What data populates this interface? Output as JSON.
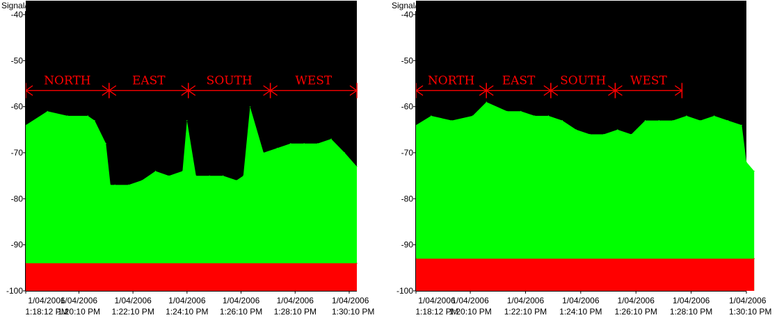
{
  "chart_data": [
    {
      "type": "area",
      "ylabel": "Signal/Noise, dBm",
      "ylim": [
        -100,
        -40
      ],
      "yticks": [
        -40,
        -50,
        -60,
        -70,
        -80,
        -90,
        -100
      ],
      "grid": false,
      "xticks": [
        {
          "date": "1/04/2006",
          "time": "1:18:12 PM"
        },
        {
          "date": "1/04/2006",
          "time": "1:20:10 PM"
        },
        {
          "date": "1/04/2006",
          "time": "1:22:10 PM"
        },
        {
          "date": "1/04/2006",
          "time": "1:24:10 PM"
        },
        {
          "date": "1/04/2006",
          "time": "1:26:10 PM"
        },
        {
          "date": "1/04/2006",
          "time": "1:28:10 PM"
        },
        {
          "date": "1/04/2006",
          "time": "1:30:10 PM"
        }
      ],
      "regions": [
        {
          "label": "NORTH",
          "start": "1:18:12 PM",
          "end": "1:21:17 PM"
        },
        {
          "label": "EAST",
          "start": "1:21:17 PM",
          "end": "1:24:13 PM"
        },
        {
          "label": "SOUTH",
          "start": "1:24:13 PM",
          "end": "1:27:15 PM"
        },
        {
          "label": "WEST",
          "start": "1:27:15 PM",
          "end": "1:30:27 PM"
        }
      ],
      "series": [
        {
          "name": "",
          "color": "#00ff00",
          "x": [
            "1:18:12 PM",
            "1:19:00 PM",
            "1:19:45 PM",
            "1:20:30 PM",
            "1:20:45 PM",
            "1:21:10 PM",
            "1:21:20 PM",
            "1:21:30 PM",
            "1:22:00 PM",
            "1:22:30 PM",
            "1:23:00 PM",
            "1:23:30 PM",
            "1:24:00 PM",
            "1:24:10 PM",
            "1:24:30 PM",
            "1:25:00 PM",
            "1:25:30 PM",
            "1:26:00 PM",
            "1:26:15 PM",
            "1:26:30 PM",
            "1:27:00 PM",
            "1:27:30 PM",
            "1:28:00 PM",
            "1:28:30 PM",
            "1:29:00 PM",
            "1:29:30 PM",
            "1:30:00 PM",
            "1:30:27 PM"
          ],
          "values": [
            -64,
            -61,
            -62,
            -62,
            -63,
            -68,
            -77,
            -77,
            -77,
            -76,
            -74,
            -75,
            -74,
            -63,
            -75,
            -75,
            -75,
            -76,
            -75,
            -60,
            -70,
            -69,
            -68,
            -68,
            -68,
            -67,
            -70,
            -73
          ]
        },
        {
          "name": "",
          "color": "#ff0000",
          "x": [
            "1:18:12 PM",
            "1:30:27 PM"
          ],
          "values": [
            -94,
            -94
          ]
        }
      ]
    },
    {
      "type": "area",
      "ylabel": "Signal/Noise, dBm",
      "ylim": [
        -100,
        -40
      ],
      "yticks": [
        -40,
        -50,
        -60,
        -70,
        -80,
        -90,
        -100
      ],
      "grid": false,
      "xticks": [
        {
          "date": "1/04/2006",
          "time": "1:18:12 PM"
        },
        {
          "date": "1/04/2006",
          "time": "1:20:10 PM"
        },
        {
          "date": "1/04/2006",
          "time": "1:22:10 PM"
        },
        {
          "date": "1/04/2006",
          "time": "1:24:10 PM"
        },
        {
          "date": "1/04/2006",
          "time": "1:26:10 PM"
        },
        {
          "date": "1/04/2006",
          "time": "1:28:10 PM"
        },
        {
          "date": "1/04/2006",
          "time": "1:30:10 PM"
        }
      ],
      "regions": [
        {
          "label": "NORTH",
          "start": "1:18:12 PM",
          "end": "1:20:45 PM"
        },
        {
          "label": "EAST",
          "start": "1:20:45 PM",
          "end": "1:23:05 PM"
        },
        {
          "label": "SOUTH",
          "start": "1:23:05 PM",
          "end": "1:25:25 PM"
        },
        {
          "label": "WEST",
          "start": "1:25:25 PM",
          "end": "1:27:50 PM"
        }
      ],
      "series": [
        {
          "name": "",
          "color": "#00ff00",
          "x": [
            "1:18:12 PM",
            "1:18:45 PM",
            "1:19:30 PM",
            "1:20:15 PM",
            "1:20:45 PM",
            "1:21:30 PM",
            "1:22:00 PM",
            "1:22:30 PM",
            "1:23:00 PM",
            "1:23:30 PM",
            "1:24:00 PM",
            "1:24:30 PM",
            "1:25:00 PM",
            "1:25:30 PM",
            "1:26:00 PM",
            "1:26:30 PM",
            "1:27:00 PM",
            "1:27:30 PM",
            "1:28:00 PM",
            "1:28:30 PM",
            "1:29:00 PM",
            "1:29:30 PM",
            "1:30:00 PM",
            "1:30:10 PM",
            "1:30:27 PM"
          ],
          "values": [
            -64,
            -62,
            -63,
            -62,
            -59,
            -61,
            -61,
            -62,
            -62,
            -63,
            -65,
            -66,
            -66,
            -65,
            -66,
            -63,
            -63,
            -63,
            -62,
            -63,
            -62,
            -63,
            -64,
            -72,
            -74
          ]
        },
        {
          "name": "",
          "color": "#ff0000",
          "x": [
            "1:18:12 PM",
            "1:30:27 PM"
          ],
          "values": [
            -93,
            -93
          ]
        }
      ]
    }
  ]
}
